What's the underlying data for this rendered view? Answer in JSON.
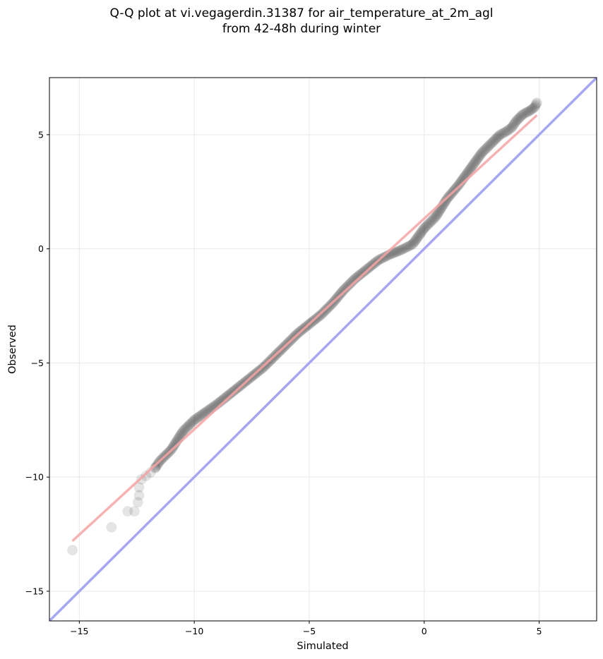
{
  "chart_data": {
    "type": "scatter",
    "title": "Q-Q plot at vi.vegagerdin.31387 for air_temperature_at_2m_agl",
    "subtitle": "from 42-48h during winter",
    "xlabel": "Simulated",
    "ylabel": "Observed",
    "xlim": [
      -16.3,
      7.5
    ],
    "ylim": [
      -16.3,
      7.5
    ],
    "xticks": [
      -15,
      -10,
      -5,
      0,
      5
    ],
    "yticks": [
      -15,
      -10,
      -5,
      0,
      5
    ],
    "xtick_labels": [
      "−15",
      "−10",
      "−5",
      "0",
      "5"
    ],
    "ytick_labels": [
      "−15",
      "−10",
      "−5",
      "0",
      "5"
    ],
    "grid": true,
    "series": [
      {
        "kind": "quantiles",
        "color": "#000000",
        "points": [
          [
            -15.3,
            -13.2
          ],
          [
            -13.6,
            -12.2
          ],
          [
            -12.9,
            -11.5
          ],
          [
            -12.6,
            -11.5
          ],
          [
            -12.45,
            -11.1
          ],
          [
            -12.4,
            -10.8
          ],
          [
            -12.4,
            -10.45
          ],
          [
            -12.3,
            -10.1
          ],
          [
            -12.1,
            -9.95
          ],
          [
            -11.9,
            -9.8
          ],
          [
            -11.7,
            -9.6
          ],
          [
            -11.5,
            -9.3
          ],
          [
            -11.0,
            -8.8
          ],
          [
            -10.5,
            -8.0
          ],
          [
            -10.0,
            -7.5
          ],
          [
            -9.0,
            -6.8
          ],
          [
            -8.5,
            -6.4
          ],
          [
            -8.0,
            -6.0
          ],
          [
            -7.5,
            -5.6
          ],
          [
            -7.0,
            -5.2
          ],
          [
            -6.5,
            -4.7
          ],
          [
            -6.0,
            -4.2
          ],
          [
            -5.5,
            -3.7
          ],
          [
            -5.0,
            -3.3
          ],
          [
            -4.5,
            -2.9
          ],
          [
            -4.0,
            -2.4
          ],
          [
            -3.5,
            -1.8
          ],
          [
            -3.0,
            -1.3
          ],
          [
            -2.5,
            -0.9
          ],
          [
            -2.0,
            -0.5
          ],
          [
            -1.5,
            -0.25
          ],
          [
            -1.0,
            -0.05
          ],
          [
            -0.5,
            0.2
          ],
          [
            0.0,
            0.9
          ],
          [
            0.5,
            1.4
          ],
          [
            1.0,
            2.2
          ],
          [
            1.5,
            2.8
          ],
          [
            2.0,
            3.5
          ],
          [
            2.5,
            4.2
          ],
          [
            3.0,
            4.7
          ],
          [
            3.3,
            5.0
          ],
          [
            3.5,
            5.1
          ],
          [
            3.8,
            5.3
          ],
          [
            4.0,
            5.6
          ],
          [
            4.3,
            5.9
          ],
          [
            4.5,
            6.0
          ],
          [
            4.6,
            6.05
          ],
          [
            4.8,
            6.2
          ],
          [
            4.9,
            6.4
          ]
        ]
      },
      {
        "kind": "fit-line",
        "color": "#f4a4a4",
        "x": [
          -15.3,
          4.9
        ],
        "y": [
          -12.8,
          5.85
        ]
      },
      {
        "kind": "identity-line",
        "color": "#a6a6f2",
        "x": [
          -16.3,
          7.5
        ],
        "y": [
          -16.3,
          7.5
        ]
      }
    ]
  }
}
